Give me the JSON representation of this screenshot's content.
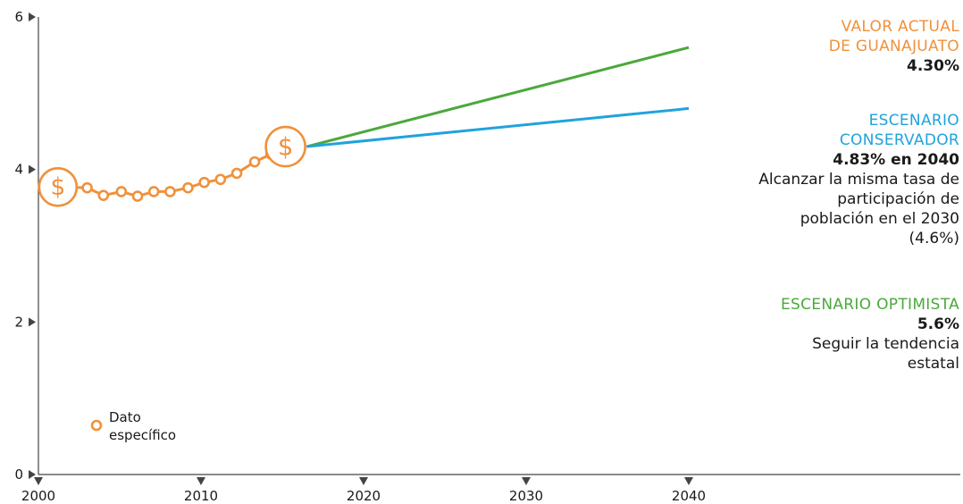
{
  "colors": {
    "orange": "#F0913A",
    "blue": "#1FA3DC",
    "green": "#4CA83C",
    "axis": "#444444"
  },
  "legend": {
    "label_line1": "Dato",
    "label_line2": "específico"
  },
  "panels": {
    "actual": {
      "title_line1": "VALOR ACTUAL",
      "title_line2": "DE GUANAJUATO",
      "value": "4.30%"
    },
    "conservador": {
      "title_line1": "ESCENARIO",
      "title_line2": "CONSERVADOR",
      "value": "4.83% en 2040",
      "desc_lines": [
        "Alcanzar la misma tasa de",
        "participación de",
        "población en el 2030",
        "(4.6%)"
      ]
    },
    "optimista": {
      "title": "ESCENARIO OPTIMISTA",
      "value": "5.6%",
      "desc_lines": [
        "Seguir la tendencia",
        "estatal"
      ]
    }
  },
  "chart_data": {
    "type": "line",
    "x_ticks": [
      2000,
      2010,
      2020,
      2030,
      2040
    ],
    "y_ticks": [
      0,
      2,
      4,
      6
    ],
    "xlim": [
      2000,
      2055
    ],
    "ylim": [
      0,
      6
    ],
    "icon_symbol": "$",
    "series": [
      {
        "color": "#F0913A",
        "x": [
          2001.2,
          2003.0,
          2004.0,
          2005.1,
          2006.1,
          2007.1,
          2008.1,
          2009.2,
          2010.2,
          2011.2,
          2012.2,
          2013.3,
          2014.3,
          2015.2
        ],
        "y": [
          3.77,
          3.76,
          3.66,
          3.71,
          3.65,
          3.71,
          3.71,
          3.76,
          3.83,
          3.87,
          3.95,
          4.1,
          4.2,
          4.3
        ]
      },
      {
        "color": "#4CA83C",
        "x": [
          2016.5,
          2040
        ],
        "y": [
          4.3,
          5.6
        ]
      },
      {
        "color": "#1FA3DC",
        "x": [
          2016.5,
          2040
        ],
        "y": [
          4.3,
          4.8
        ]
      }
    ]
  }
}
